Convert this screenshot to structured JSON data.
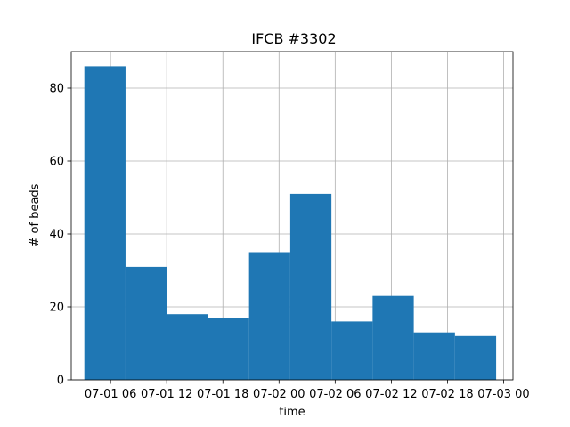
{
  "chart_data": {
    "type": "bar",
    "title": "IFCB #3302",
    "xlabel": "time",
    "ylabel": "# of beads",
    "grid": true,
    "bar_color": "#1f77b4",
    "x_ticks": [
      {
        "label": "07-01 06",
        "value": 0
      },
      {
        "label": "07-01 12",
        "value": 6
      },
      {
        "label": "07-01 18",
        "value": 12
      },
      {
        "label": "07-02 00",
        "value": 18
      },
      {
        "label": "07-02 06",
        "value": 24
      },
      {
        "label": "07-02 12",
        "value": 30
      },
      {
        "label": "07-02 18",
        "value": 36
      },
      {
        "label": "07-03 00",
        "value": 42
      }
    ],
    "xlim": [
      -4.2,
      43
    ],
    "bins": [
      {
        "start": -2.8,
        "end": 1.6,
        "count": 86
      },
      {
        "start": 1.6,
        "end": 6.0,
        "count": 31
      },
      {
        "start": 6.0,
        "end": 10.4,
        "count": 18
      },
      {
        "start": 10.4,
        "end": 14.8,
        "count": 17
      },
      {
        "start": 14.8,
        "end": 19.2,
        "count": 35
      },
      {
        "start": 19.2,
        "end": 23.6,
        "count": 51
      },
      {
        "start": 23.6,
        "end": 28.0,
        "count": 16
      },
      {
        "start": 28.0,
        "end": 32.4,
        "count": 23
      },
      {
        "start": 32.4,
        "end": 36.8,
        "count": 13
      },
      {
        "start": 36.8,
        "end": 41.2,
        "count": 12
      }
    ],
    "y_ticks": [
      0,
      20,
      40,
      60,
      80
    ],
    "ylim": [
      0,
      90
    ]
  }
}
